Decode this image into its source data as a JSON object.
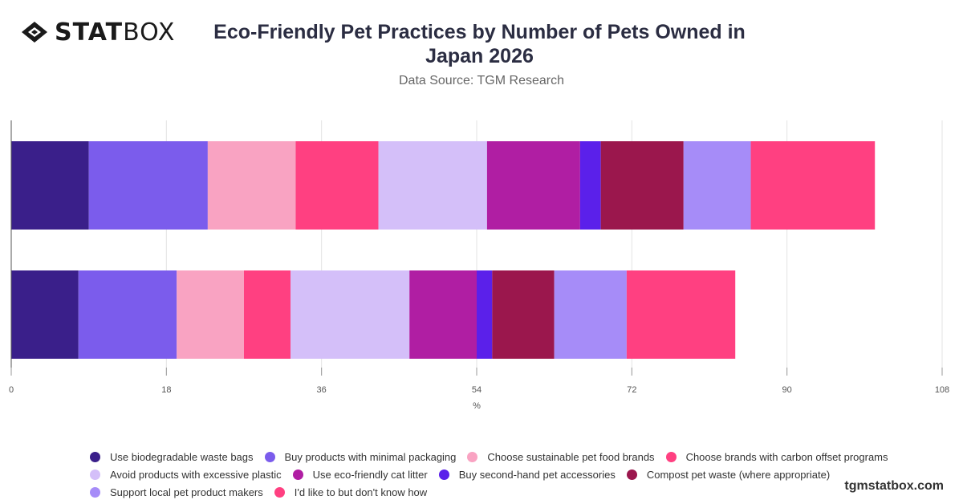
{
  "header": {
    "logo_text_bold": "STAT",
    "logo_text_light": "BOX",
    "title": "Eco-Friendly Pet Practices by Number of Pets Owned in Japan 2026",
    "subtitle": "Data Source: TGM Research"
  },
  "footer": {
    "site": "tgmstatbox.com"
  },
  "chart_data": {
    "type": "bar",
    "orientation": "horizontal",
    "stacked": true,
    "xlabel": "%",
    "ylabel": "",
    "xlim": [
      0,
      108
    ],
    "xticks": [
      0,
      18,
      36,
      54,
      72,
      90,
      108
    ],
    "grid": true,
    "legend_position": "bottom",
    "categories": [
      "",
      ""
    ],
    "series": [
      {
        "name": "Use biodegradable waste bags",
        "color": "#3a1f8a",
        "values": [
          9,
          7.8
        ]
      },
      {
        "name": "Buy products with minimal packaging",
        "color": "#7b5cec",
        "values": [
          13.8,
          11.4
        ]
      },
      {
        "name": "Choose sustainable pet food brands",
        "color": "#f9a3c2",
        "values": [
          10.2,
          7.8
        ]
      },
      {
        "name": "Choose brands with carbon offset programs",
        "color": "#ff4081",
        "values": [
          9.6,
          5.4
        ]
      },
      {
        "name": "Avoid products with excessive plastic",
        "color": "#d4bff9",
        "values": [
          12.6,
          13.8
        ]
      },
      {
        "name": "Use eco-friendly cat litter",
        "color": "#b01ea3",
        "values": [
          10.8,
          7.8
        ]
      },
      {
        "name": "Buy second-hand pet accessories",
        "color": "#5b20ea",
        "values": [
          2.4,
          1.8
        ]
      },
      {
        "name": "Compost pet waste (where appropriate)",
        "color": "#9b174d",
        "values": [
          9.6,
          7.2
        ]
      },
      {
        "name": "Support local pet product makers",
        "color": "#a68cf8",
        "values": [
          7.8,
          8.4
        ]
      },
      {
        "name": "I'd like to but don't know how",
        "color": "#ff4081",
        "values": [
          14.4,
          12.6
        ]
      }
    ]
  },
  "legend_rows": [
    [
      0,
      1,
      2,
      3
    ],
    [
      4,
      5,
      6,
      7
    ],
    [
      8,
      9
    ]
  ]
}
